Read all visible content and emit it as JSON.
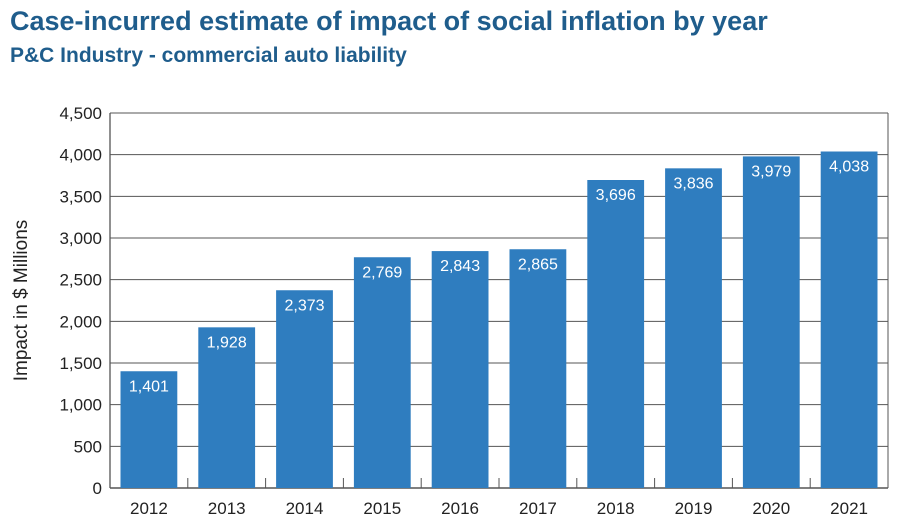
{
  "chart_data": {
    "type": "bar",
    "title": "Case-incurred estimate of impact of social inflation by year",
    "subtitle": "P&C Industry - commercial auto liability",
    "xlabel": "",
    "ylabel": "Impact in $ Millions",
    "categories": [
      "2012",
      "2013",
      "2014",
      "2015",
      "2016",
      "2017",
      "2018",
      "2019",
      "2020",
      "2021"
    ],
    "values": [
      1401,
      1928,
      2373,
      2769,
      2843,
      2865,
      3696,
      3836,
      3979,
      4038
    ],
    "data_labels": [
      "1,401",
      "1,928",
      "2,373",
      "2,769",
      "2,843",
      "2,865",
      "3,696",
      "3,836",
      "3,979",
      "4,038"
    ],
    "ylim": [
      0,
      4500
    ],
    "yticks": [
      0,
      500,
      1000,
      1500,
      2000,
      2500,
      3000,
      3500,
      4000,
      4500
    ],
    "ytick_labels": [
      "0",
      "500",
      "1,000",
      "1,500",
      "2,000",
      "2,500",
      "3,000",
      "3,500",
      "4,000",
      "4,500"
    ],
    "grid": true,
    "legend": "none",
    "colors": {
      "bar": "#2f7dbf",
      "title": "#1f5d8c",
      "grid": "#555555"
    }
  }
}
